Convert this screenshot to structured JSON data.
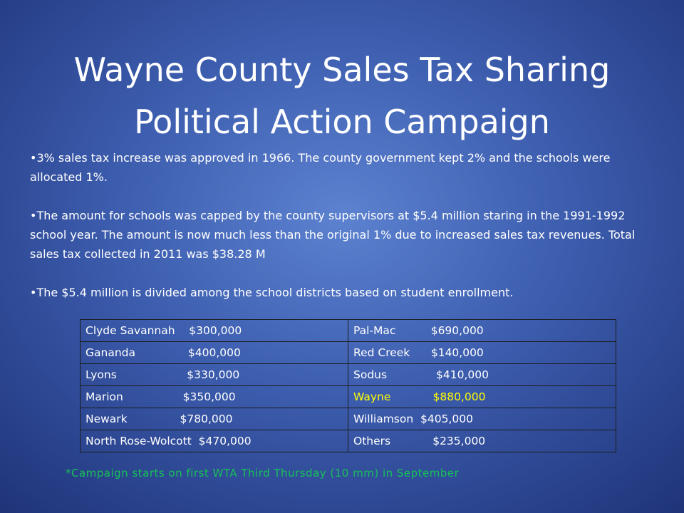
{
  "title": {
    "line1": "Wayne County Sales Tax Sharing",
    "line2": "Political Action Campaign"
  },
  "bullets": [
    "•3% sales tax increase was approved in 1966.  The county government kept 2% and the schools were allocated 1%.",
    "•The amount for schools was capped by the county supervisors at $5.4 million staring in the 1991-1992 school year. The amount is now much less than the original 1% due to increased sales tax revenues.  Total sales tax collected in 2011 was $38.28 M",
    "•The $5.4 million is divided among the school districts based on student enrollment."
  ],
  "table": {
    "rows": [
      [
        "Clyde Savannah    $300,000",
        "Pal-Mac          $690,000"
      ],
      [
        "Gananda               $400,000",
        "Red Creek      $140,000"
      ],
      [
        "Lyons                    $330,000",
        "Sodus              $410,000"
      ],
      [
        "Marion                 $350,000",
        "Wayne            $880,000"
      ],
      [
        "Newark               $780,000",
        "Williamson  $405,000"
      ],
      [
        "North Rose-Wolcott  $470,000",
        "Others            $235,000"
      ]
    ],
    "highlight_color": "#ffff00"
  },
  "footnote": "*Campaign starts on first WTA Third Thursday (10 mm) in September"
}
